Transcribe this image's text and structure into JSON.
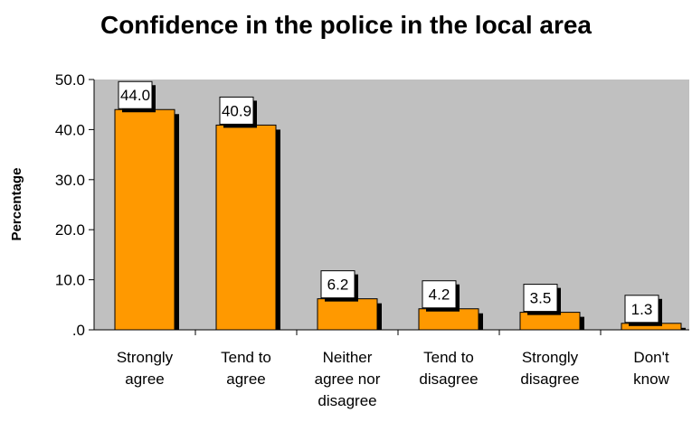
{
  "chart_data": {
    "type": "bar",
    "title": "Confidence in the police in the local area",
    "xlabel": "",
    "ylabel": "Percentage",
    "categories": [
      [
        "Strongly",
        "agree"
      ],
      [
        "Tend to",
        "agree"
      ],
      [
        "Neither",
        "agree nor",
        "disagree"
      ],
      [
        "Tend to",
        "disagree"
      ],
      [
        "Strongly",
        "disagree"
      ],
      [
        "Don't",
        "know"
      ]
    ],
    "values": [
      44.0,
      40.9,
      6.2,
      4.2,
      3.5,
      1.3
    ],
    "data_labels": [
      "44.0",
      "40.9",
      "6.2",
      "4.2",
      "3.5",
      "1.3"
    ],
    "y_ticks": [
      ".0",
      "10.0",
      "20.0",
      "30.0",
      "40.0",
      "50.0"
    ],
    "ylim": [
      0,
      50
    ],
    "grid": false,
    "legend": "none",
    "colors": {
      "bar": "#FF9900",
      "plot_background": "#C0C0C0",
      "shadow": "#000000"
    }
  }
}
